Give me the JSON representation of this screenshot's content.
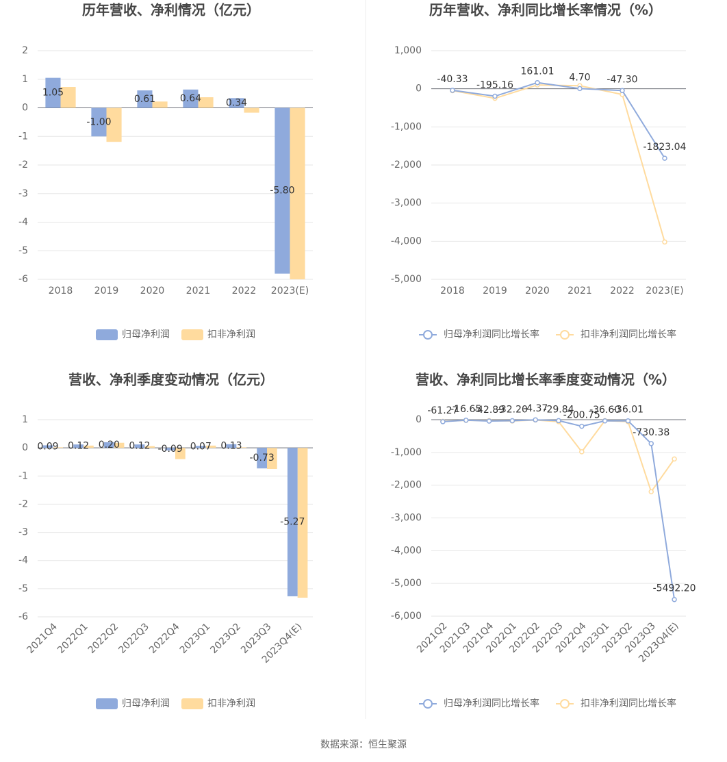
{
  "chart_data": [
    {
      "type": "bar",
      "title": "历年营收、净利情况（亿元）",
      "categories": [
        "2018",
        "2019",
        "2020",
        "2021",
        "2022",
        "2023(E)"
      ],
      "series": [
        {
          "name": "归母净利润",
          "color": "#8faadc",
          "values": [
            1.05,
            -1.0,
            0.61,
            0.64,
            0.34,
            -5.8
          ],
          "value_labels": [
            "1.05",
            "-1.00",
            "0.61",
            "0.64",
            "0.34",
            "-5.80"
          ]
        },
        {
          "name": "扣非净利润",
          "color": "#ffdb9e",
          "values": [
            0.73,
            -1.19,
            0.22,
            0.37,
            -0.17,
            -6.0
          ]
        }
      ],
      "ylim": [
        -6,
        2
      ],
      "yticks": [
        -6,
        -5,
        -4,
        -3,
        -2,
        -1,
        0,
        1,
        2
      ],
      "grid": true,
      "legend": "bottom"
    },
    {
      "type": "line",
      "title": "历年营收、净利同比增长率情况（%）",
      "categories": [
        "2018",
        "2019",
        "2020",
        "2021",
        "2022",
        "2023(E)"
      ],
      "series": [
        {
          "name": "归母净利润同比增长率",
          "color": "#8faadc",
          "values": [
            -40.33,
            -195.16,
            161.01,
            4.7,
            -47.3,
            -1823.04
          ],
          "value_labels": [
            "-40.33",
            "-195.16",
            "161.01",
            "4.70",
            "-47.30",
            "-1823.04"
          ]
        },
        {
          "name": "扣非净利润同比增长率",
          "color": "#ffdb9e",
          "values": [
            -50,
            -250,
            100,
            80,
            -150,
            -4020
          ]
        }
      ],
      "ylim": [
        -5000,
        1000
      ],
      "yticks": [
        {
          "value": -5000,
          "label": "-5,000"
        },
        {
          "value": -4000,
          "label": "-4,000"
        },
        {
          "value": -3000,
          "label": "-3,000"
        },
        {
          "value": -2000,
          "label": "-2,000"
        },
        {
          "value": -1000,
          "label": "-1,000"
        },
        0,
        {
          "value": 1000,
          "label": "1,000"
        }
      ],
      "grid": true,
      "legend": "bottom"
    },
    {
      "type": "bar",
      "title": "营收、净利季度变动情况（亿元）",
      "categories": [
        "2021Q4",
        "2022Q1",
        "2022Q2",
        "2022Q3",
        "2022Q4",
        "2023Q1",
        "2023Q2",
        "2023Q3",
        "2023Q4(E)"
      ],
      "series": [
        {
          "name": "归母净利润",
          "color": "#8faadc",
          "values": [
            0.09,
            0.12,
            0.2,
            0.12,
            -0.09,
            0.07,
            0.13,
            -0.73,
            -5.27
          ],
          "value_labels": [
            "0.09",
            "0.12",
            "0.20",
            "0.12",
            "-0.09",
            "0.07",
            "0.13",
            "-0.73",
            "-5.27"
          ]
        },
        {
          "name": "扣非净利润",
          "color": "#ffdb9e",
          "values": [
            0.02,
            0.08,
            0.18,
            0.06,
            -0.4,
            0.08,
            0.02,
            -0.75,
            -5.32
          ]
        }
      ],
      "ylim": [
        -6,
        1
      ],
      "yticks": [
        -6,
        -5,
        -4,
        -3,
        -2,
        -1,
        0,
        1
      ],
      "grid": true,
      "legend": "bottom"
    },
    {
      "type": "line",
      "title": "营收、净利同比增长率季度变动情况（%）",
      "categories": [
        "2021Q2",
        "2021Q3",
        "2021Q4",
        "2022Q1",
        "2022Q2",
        "2022Q3",
        "2022Q4",
        "2023Q1",
        "2023Q2",
        "2023Q3",
        "2023Q4(E)"
      ],
      "series": [
        {
          "name": "归母净利润同比增长率",
          "color": "#8faadc",
          "values": [
            -61.27,
            -16.65,
            -42.89,
            -32.2,
            -4.37,
            -29.84,
            -200.75,
            -36.6,
            -36.01,
            -730.38,
            -5492.2
          ],
          "value_labels": [
            "-61.27",
            "-16.65",
            "-42.89",
            "-32.20",
            "-4.37",
            "-29.84",
            "-200.75",
            "-36.60",
            "-36.01",
            "-730.38",
            "-5492.20"
          ]
        },
        {
          "name": "扣非净利润同比增长率",
          "color": "#ffdb9e",
          "values": [
            -50,
            -20,
            -30,
            -40,
            -10,
            -60,
            -980,
            -30,
            -60,
            -2200,
            -1200
          ]
        }
      ],
      "ylim": [
        -6000,
        0
      ],
      "yticks": [
        {
          "value": -6000,
          "label": "-6,000"
        },
        {
          "value": -5000,
          "label": "-5,000"
        },
        {
          "value": -4000,
          "label": "-4,000"
        },
        {
          "value": -3000,
          "label": "-3,000"
        },
        {
          "value": -2000,
          "label": "-2,000"
        },
        {
          "value": -1000,
          "label": "-1,000"
        },
        0
      ],
      "grid": true,
      "legend": "bottom"
    }
  ],
  "source": "数据来源：恒生聚源"
}
